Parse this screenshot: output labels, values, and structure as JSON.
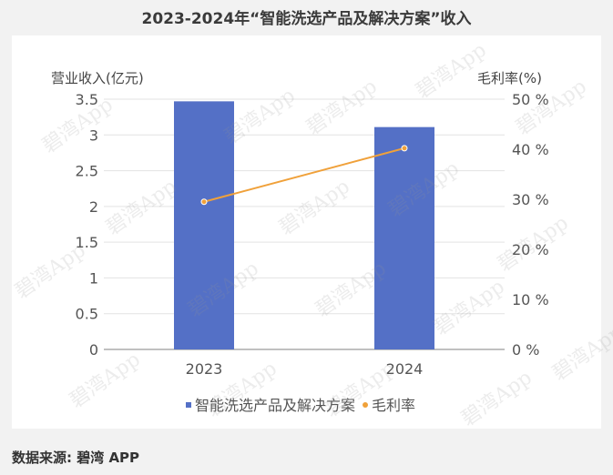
{
  "title": "2023-2024年“智能洗选产品及解决方案”收入",
  "source": "数据来源: 碧湾 APP",
  "watermark": "碧湾App",
  "chart_data": {
    "type": "bar",
    "categories": [
      "2023",
      "2024"
    ],
    "series": [
      {
        "name": "智能洗选产品及解决方案",
        "type": "bar",
        "axis": "left",
        "color": "#5470c6",
        "values": [
          3.47,
          3.11
        ]
      },
      {
        "name": "毛利率",
        "type": "line",
        "axis": "right",
        "color": "#f0a13a",
        "values": [
          29.5,
          40.2
        ]
      }
    ],
    "ylabel": "营业收入(亿元)",
    "y2label": "毛利率(%)",
    "ylim": [
      0,
      3.5
    ],
    "y2lim": [
      0,
      50
    ],
    "yticks": [
      "0",
      "0.5",
      "1",
      "1.5",
      "2",
      "2.5",
      "3",
      "3.5"
    ],
    "y2ticks": [
      "0 %",
      "10 %",
      "20 %",
      "30 %",
      "40 %",
      "50 %"
    ],
    "grid": true,
    "legend_position": "bottom"
  }
}
